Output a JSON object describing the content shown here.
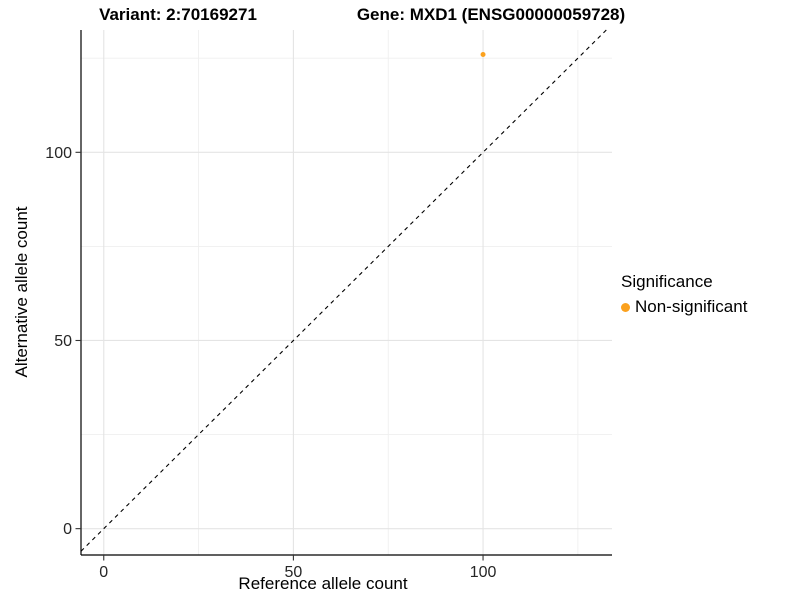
{
  "chart_data": {
    "type": "scatter",
    "title_left": "Variant: 2:70169271",
    "title_right": "Gene: MXD1 (ENSG00000059728)",
    "xlabel": "Reference allele count",
    "ylabel": "Alternative allele count",
    "xlim": [
      -6,
      134
    ],
    "ylim": [
      -7,
      132.5
    ],
    "x_ticks": [
      0,
      50,
      100
    ],
    "y_ticks": [
      0,
      50,
      100
    ],
    "x_minor_ticks": [
      25,
      75,
      125
    ],
    "y_minor_ticks": [
      25,
      75,
      125
    ],
    "grid": true,
    "points": [
      {
        "x": 100,
        "y": 126,
        "series": "Non-significant"
      }
    ],
    "reference_line": {
      "type": "identity",
      "slope": 1,
      "intercept": 0,
      "style": "dashed"
    },
    "legend": {
      "title": "Significance",
      "position": "right",
      "entries": [
        {
          "label": "Non-significant",
          "color": "#FBA11E"
        }
      ]
    },
    "colors": {
      "point": "#FBA11E",
      "grid_major": "#E4E4E4",
      "grid_minor": "#EFEFEF",
      "axis_line": "#000000",
      "tick": "#333333",
      "tick_label": "#262626",
      "dashed_line": "#000000"
    }
  }
}
